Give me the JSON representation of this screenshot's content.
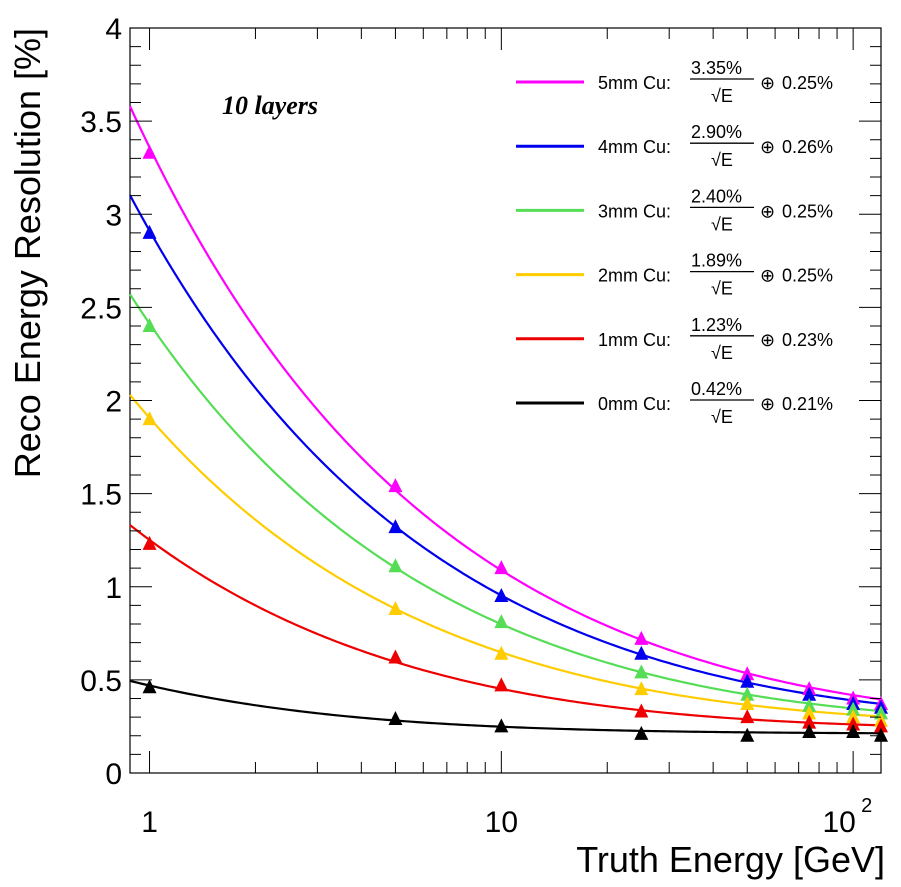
{
  "chart_data": {
    "type": "scatter",
    "annotation": "10 layers",
    "xlabel": "Truth Energy [GeV]",
    "ylabel": "Reco Energy Resolution [%]",
    "x_scale": "log",
    "xlim": [
      0.88,
      120
    ],
    "ylim": [
      0,
      4
    ],
    "grid": false,
    "legend_position": "top-right",
    "x_ticks": [
      {
        "value": 1,
        "base": "1",
        "exp": ""
      },
      {
        "value": 10,
        "base": "10",
        "exp": ""
      },
      {
        "value": 100,
        "base": "10",
        "exp": "2"
      }
    ],
    "y_ticks": [
      {
        "value": 0,
        "label": "0"
      },
      {
        "value": 0.5,
        "label": "0.5"
      },
      {
        "value": 1,
        "label": "1"
      },
      {
        "value": 1.5,
        "label": "1.5"
      },
      {
        "value": 2,
        "label": "2"
      },
      {
        "value": 2.5,
        "label": "2.5"
      },
      {
        "value": 3,
        "label": "3"
      },
      {
        "value": 3.5,
        "label": "3.5"
      },
      {
        "value": 4,
        "label": "4"
      }
    ],
    "x": [
      1,
      5,
      10,
      25,
      50,
      75,
      100,
      120
    ],
    "series": [
      {
        "name": "5mm Cu:",
        "stochastic": "3.35%",
        "sqrt_label": "√E",
        "oplus": "⊕",
        "constant": "0.25%",
        "a": 3.35,
        "b": 0.25,
        "color": "#ff00ff",
        "values": [
          3.33,
          1.54,
          1.1,
          0.72,
          0.53,
          0.45,
          0.4,
          0.37
        ]
      },
      {
        "name": "4mm Cu:",
        "stochastic": "2.90%",
        "sqrt_label": "√E",
        "oplus": "⊕",
        "constant": "0.26%",
        "a": 2.9,
        "b": 0.26,
        "color": "#0000ee",
        "values": [
          2.9,
          1.32,
          0.95,
          0.64,
          0.49,
          0.42,
          0.37,
          0.35
        ]
      },
      {
        "name": "3mm Cu:",
        "stochastic": "2.40%",
        "sqrt_label": "√E",
        "oplus": "⊕",
        "constant": "0.25%",
        "a": 2.4,
        "b": 0.25,
        "color": "#55dd55",
        "values": [
          2.4,
          1.11,
          0.81,
          0.54,
          0.42,
          0.36,
          0.34,
          0.32
        ]
      },
      {
        "name": "2mm Cu:",
        "stochastic": "1.89%",
        "sqrt_label": "√E",
        "oplus": "⊕",
        "constant": "0.25%",
        "a": 1.89,
        "b": 0.25,
        "color": "#ffcc00",
        "values": [
          1.9,
          0.88,
          0.64,
          0.45,
          0.37,
          0.32,
          0.3,
          0.28
        ]
      },
      {
        "name": "1mm Cu:",
        "stochastic": "1.23%",
        "sqrt_label": "√E",
        "oplus": "⊕",
        "constant": "0.23%",
        "a": 1.23,
        "b": 0.23,
        "color": "#ee0000",
        "values": [
          1.23,
          0.62,
          0.47,
          0.33,
          0.3,
          0.27,
          0.26,
          0.25
        ]
      },
      {
        "name": "0mm Cu:",
        "stochastic": "0.42%",
        "sqrt_label": "√E",
        "oplus": "⊕",
        "constant": "0.21%",
        "a": 0.42,
        "b": 0.21,
        "color": "#000000",
        "values": [
          0.46,
          0.29,
          0.25,
          0.21,
          0.2,
          0.22,
          0.22,
          0.2
        ]
      }
    ]
  }
}
